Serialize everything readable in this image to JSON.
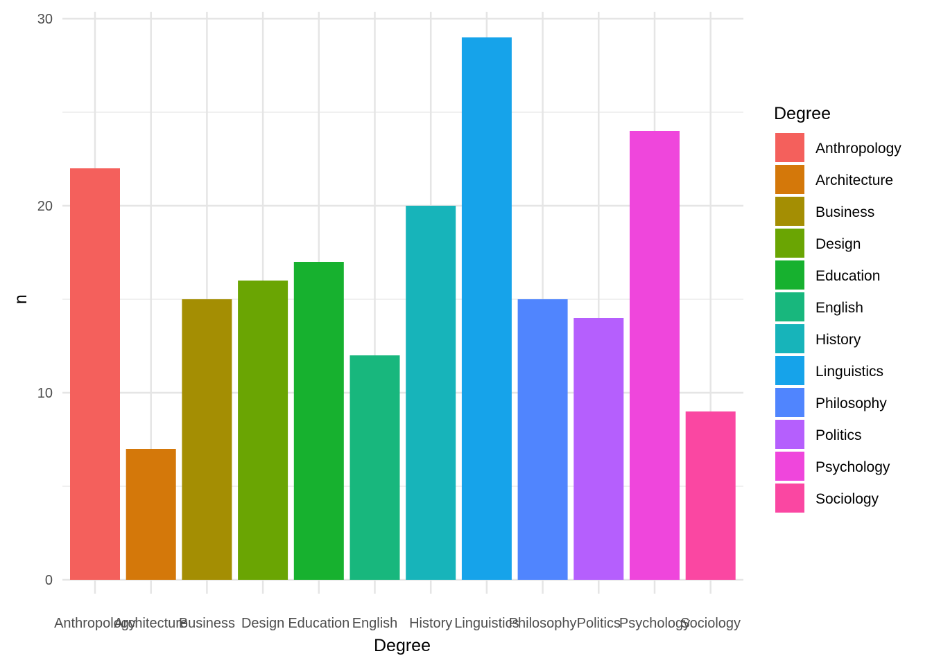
{
  "chart_data": {
    "type": "bar",
    "title": "",
    "xlabel": "Degree",
    "ylabel": "n",
    "ylim": [
      0,
      30
    ],
    "yticks": [
      0,
      10,
      20,
      30
    ],
    "grid": true,
    "legend": {
      "title": "Degree",
      "placement": "right"
    },
    "categories": [
      "Anthropology",
      "Architecture",
      "Business",
      "Design",
      "Education",
      "English",
      "History",
      "Linguistics",
      "Philosophy",
      "Politics",
      "Psychology",
      "Sociology"
    ],
    "values": [
      22,
      7,
      15,
      16,
      17,
      12,
      20,
      29,
      15,
      14,
      24,
      9
    ],
    "colors": [
      "#F4605C",
      "#D4780A",
      "#A48E03",
      "#6AA503",
      "#17B12F",
      "#18B77D",
      "#17B4BA",
      "#16A3EA",
      "#5085FE",
      "#B55FFD",
      "#EF46DC",
      "#FA47A2"
    ]
  }
}
